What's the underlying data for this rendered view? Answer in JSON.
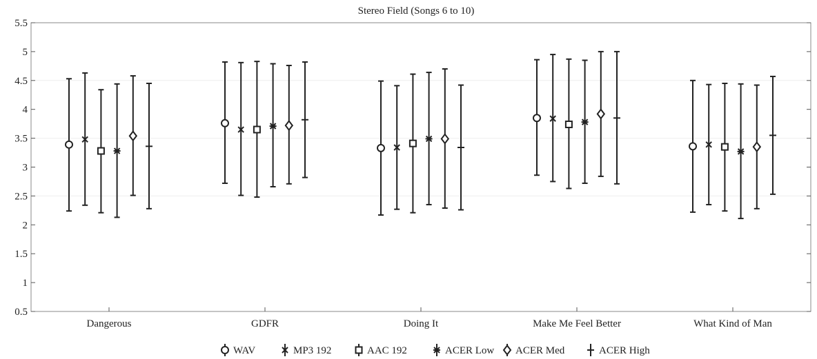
{
  "chart_data": {
    "type": "errorbar",
    "title": "Stereo Field (Songs 6 to 10)",
    "xlabel": "",
    "ylabel": "",
    "ylim": [
      0.5,
      5.5
    ],
    "yticks": [
      0.5,
      1,
      1.5,
      2,
      2.5,
      3,
      3.5,
      4,
      4.5,
      5,
      5.5
    ],
    "ytick_labels": [
      "0.5",
      "1",
      "1.5",
      "2",
      "2.5",
      "3",
      "3.5",
      "4",
      "4.5",
      "5",
      "5.5"
    ],
    "categories": [
      "Dangerous",
      "GDFR",
      "Doing It",
      "Make Me Feel Better",
      "What Kind of Man"
    ],
    "legend_position": "bottom",
    "grid": false,
    "series": [
      {
        "name": "WAV",
        "marker": "circle",
        "mean": [
          3.39,
          3.76,
          3.33,
          3.85,
          3.36
        ],
        "lower": [
          2.24,
          2.72,
          2.17,
          2.86,
          2.22
        ],
        "upper": [
          4.53,
          4.82,
          4.49,
          4.86,
          4.5
        ]
      },
      {
        "name": "MP3 192",
        "marker": "x",
        "mean": [
          3.48,
          3.65,
          3.34,
          3.84,
          3.39
        ],
        "lower": [
          2.34,
          2.51,
          2.27,
          2.75,
          2.35
        ],
        "upper": [
          4.63,
          4.81,
          4.41,
          4.95,
          4.43
        ]
      },
      {
        "name": "AAC 192",
        "marker": "square",
        "mean": [
          3.28,
          3.65,
          3.41,
          3.74,
          3.35
        ],
        "lower": [
          2.21,
          2.48,
          2.21,
          2.63,
          2.24
        ],
        "upper": [
          4.34,
          4.83,
          4.61,
          4.87,
          4.45
        ]
      },
      {
        "name": "ACER Low",
        "marker": "asterisk",
        "mean": [
          3.28,
          3.71,
          3.49,
          3.78,
          3.27
        ],
        "lower": [
          2.13,
          2.66,
          2.35,
          2.72,
          2.11
        ],
        "upper": [
          4.44,
          4.79,
          4.64,
          4.85,
          4.44
        ]
      },
      {
        "name": "ACER Med",
        "marker": "diamond",
        "mean": [
          3.54,
          3.72,
          3.49,
          3.92,
          3.35
        ],
        "lower": [
          2.51,
          2.71,
          2.29,
          2.84,
          2.28
        ],
        "upper": [
          4.58,
          4.76,
          4.7,
          5.0,
          4.42
        ]
      },
      {
        "name": "ACER High",
        "marker": "plus",
        "mean": [
          3.36,
          3.82,
          3.34,
          3.85,
          3.55
        ],
        "lower": [
          2.28,
          2.82,
          2.26,
          2.71,
          2.53
        ],
        "upper": [
          4.45,
          4.82,
          4.42,
          5.0,
          4.57
        ]
      }
    ]
  }
}
